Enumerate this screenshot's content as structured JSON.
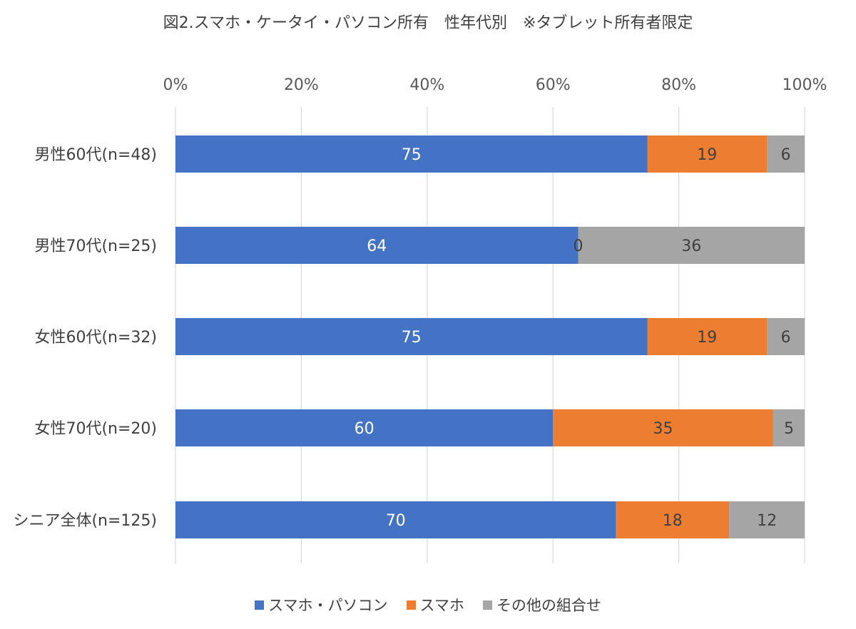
{
  "chart_data": {
    "type": "bar",
    "orientation": "horizontal",
    "stacked": "percent",
    "title": "図2.スマホ・ケータイ・パソコン所有　性年代別　※タブレット所有者限定",
    "categories": [
      "男性60代(n=48)",
      "男性70代(n=25)",
      "女性60代(n=32)",
      "女性70代(n=20)",
      "シニア全体(n=125)"
    ],
    "series": [
      {
        "name": "スマホ・パソコン",
        "color": "#4472C4",
        "label_color": "#FFFFFF",
        "values": [
          75,
          64,
          75,
          60,
          70
        ]
      },
      {
        "name": "スマホ",
        "color": "#ED7D31",
        "label_color": "#404040",
        "values": [
          19,
          0,
          19,
          35,
          18
        ]
      },
      {
        "name": "その他の組合せ",
        "color": "#A5A5A5",
        "label_color": "#404040",
        "values": [
          6,
          36,
          6,
          5,
          12
        ]
      }
    ],
    "x_ticks": [
      "0%",
      "20%",
      "40%",
      "60%",
      "80%",
      "100%"
    ],
    "xlim": [
      0,
      100
    ],
    "grid": true,
    "legend": "bottom"
  }
}
